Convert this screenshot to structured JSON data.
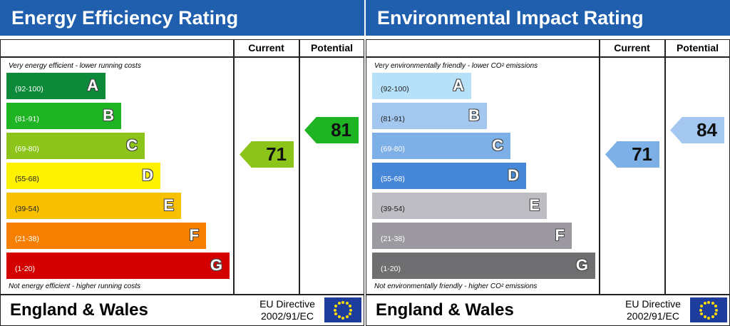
{
  "panels": [
    {
      "title": "Energy Efficiency Rating",
      "columns": [
        "Current",
        "Potential"
      ],
      "top_note": "Very energy efficient - lower running costs",
      "bands": [
        {
          "range": "(92-100)",
          "letter": "A",
          "color": "#0c8a3a"
        },
        {
          "range": "(81-91)",
          "letter": "B",
          "color": "#1fb424"
        },
        {
          "range": "(69-80)",
          "letter": "C",
          "color": "#8cc41a"
        },
        {
          "range": "(55-68)",
          "letter": "D",
          "color": "#fff200"
        },
        {
          "range": "(39-54)",
          "letter": "E",
          "color": "#f8c100"
        },
        {
          "range": "(21-38)",
          "letter": "F",
          "color": "#f77f00"
        },
        {
          "range": "(1-20)",
          "letter": "G",
          "color": "#d40000"
        }
      ],
      "bottom_note": "Not energy efficient - higher running costs",
      "current": 71,
      "potential": 81,
      "footer": {
        "region": "England & Wales",
        "directive": [
          "EU Directive",
          "2002/91/EC"
        ]
      }
    },
    {
      "title": "Environmental Impact Rating",
      "columns": [
        "Current",
        "Potential"
      ],
      "top_note": "Very environmentally friendly - lower CO² emissions",
      "bands": [
        {
          "range": "(92-100)",
          "letter": "A",
          "color": "#b6e1f8"
        },
        {
          "range": "(81-91)",
          "letter": "B",
          "color": "#a3c7ef"
        },
        {
          "range": "(69-80)",
          "letter": "C",
          "color": "#7cb0e6"
        },
        {
          "range": "(55-68)",
          "letter": "D",
          "color": "#4787d8"
        },
        {
          "range": "(39-54)",
          "letter": "E",
          "color": "#bdbdc3"
        },
        {
          "range": "(21-38)",
          "letter": "F",
          "color": "#9d99a1"
        },
        {
          "range": "(1-20)",
          "letter": "G",
          "color": "#6f6f71"
        }
      ],
      "bottom_note": "Not environmentally friendly - higher CO² emissions",
      "current": 71,
      "potential": 84,
      "footer": {
        "region": "England & Wales",
        "directive": [
          "EU Directive",
          "2002/91/EC"
        ]
      }
    }
  ]
}
